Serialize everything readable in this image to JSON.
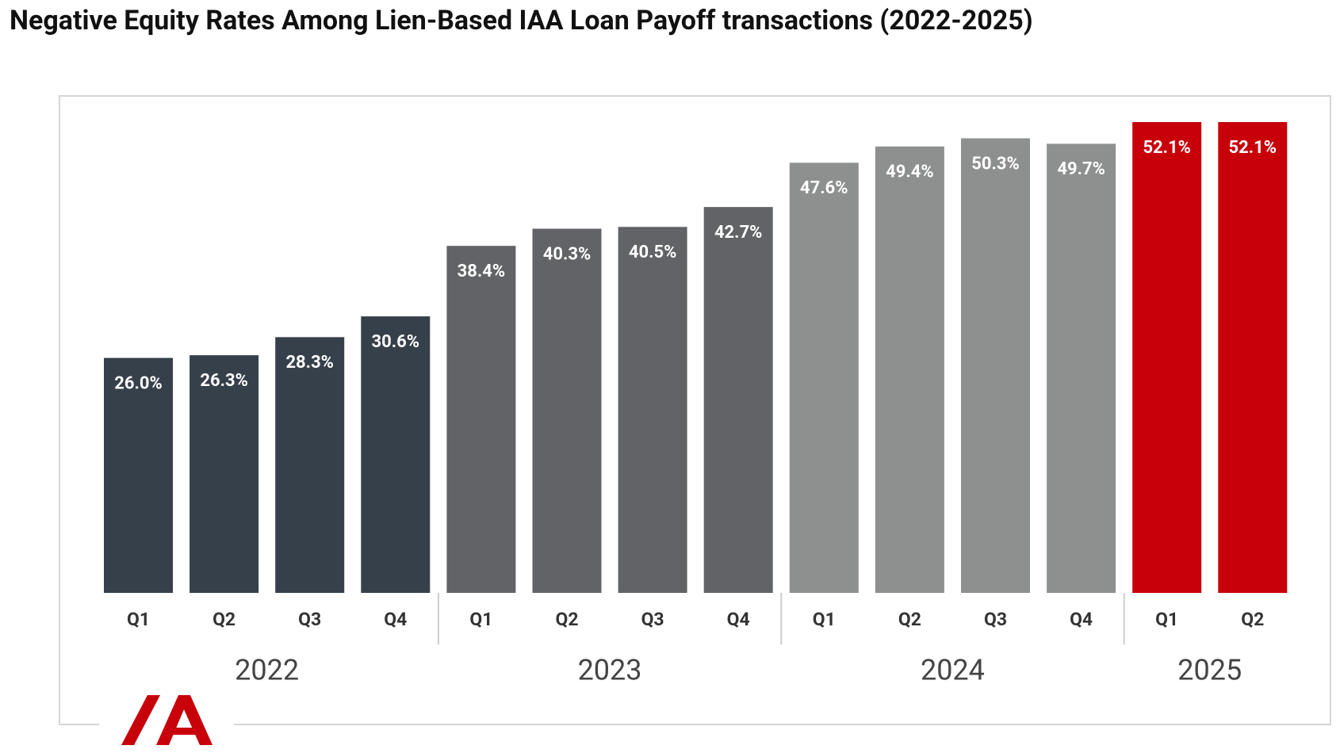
{
  "chart_data": {
    "type": "bar",
    "title": "Negative Equity Rates Among Lien-Based IAA Loan Payoff transactions (2022-2025)",
    "groups": [
      {
        "name": "2022",
        "color": "#36404a",
        "categories": [
          "Q1",
          "Q2",
          "Q3",
          "Q4"
        ],
        "values": [
          26.0,
          26.3,
          28.3,
          30.6
        ],
        "value_labels": [
          "26.0%",
          "26.3%",
          "28.3%",
          "30.6%"
        ]
      },
      {
        "name": "2023",
        "color": "#616366",
        "categories": [
          "Q1",
          "Q2",
          "Q3",
          "Q4"
        ],
        "values": [
          38.4,
          40.3,
          40.5,
          42.7
        ],
        "value_labels": [
          "38.4%",
          "40.3%",
          "40.5%",
          "42.7%"
        ]
      },
      {
        "name": "2024",
        "color": "#8e8f8f",
        "categories": [
          "Q1",
          "Q2",
          "Q3",
          "Q4"
        ],
        "values": [
          47.6,
          49.4,
          50.3,
          49.7
        ],
        "value_labels": [
          "47.6%",
          "49.4%",
          "50.3%",
          "49.7%"
        ]
      },
      {
        "name": "2025",
        "color": "#c8000a",
        "categories": [
          "Q1",
          "Q2"
        ],
        "values": [
          52.1,
          52.1
        ],
        "value_labels": [
          "52.1%",
          "52.1%"
        ]
      }
    ]
  }
}
